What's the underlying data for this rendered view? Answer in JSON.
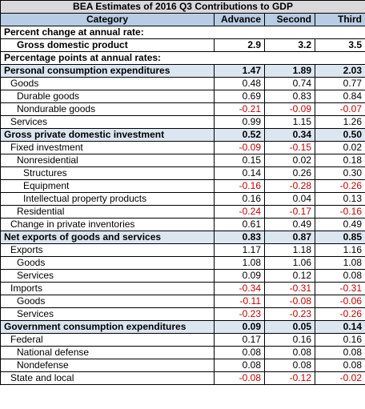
{
  "title": "BEA Estimates of 2016 Q3 Contributions to GDP",
  "table": {
    "header": [
      "Category",
      "Advance",
      "Second",
      "Third"
    ],
    "rows": [
      {
        "label": "Percent change at annual rate:",
        "level": 0,
        "emphasis": "bold"
      },
      {
        "label": "Gross domestic product",
        "level": 2,
        "emphasis": "bold",
        "values": [
          "2.9",
          "3.2",
          "3.5"
        ]
      },
      {
        "label": "Percentage points at annual rates:",
        "level": 0,
        "emphasis": "bold"
      },
      {
        "label": "Personal consumption expenditures",
        "level": 0,
        "emphasis": "section",
        "values": [
          "1.47",
          "1.89",
          "2.03"
        ]
      },
      {
        "label": "Goods",
        "level": 1,
        "values": [
          "0.48",
          "0.74",
          "0.77"
        ]
      },
      {
        "label": "Durable goods",
        "level": 2,
        "values": [
          "0.69",
          "0.83",
          "0.84"
        ]
      },
      {
        "label": "Nondurable goods",
        "level": 2,
        "values": [
          "-0.21",
          "-0.09",
          "-0.07"
        ]
      },
      {
        "label": "Services",
        "level": 1,
        "values": [
          "0.99",
          "1.15",
          "1.26"
        ]
      },
      {
        "label": "Gross private domestic investment",
        "level": 0,
        "emphasis": "section",
        "values": [
          "0.52",
          "0.34",
          "0.50"
        ]
      },
      {
        "label": "Fixed investment",
        "level": 1,
        "values": [
          "-0.09",
          "-0.15",
          "0.02"
        ]
      },
      {
        "label": "Nonresidential",
        "level": 2,
        "values": [
          "0.15",
          "0.02",
          "0.18"
        ]
      },
      {
        "label": "Structures",
        "level": 3,
        "values": [
          "0.14",
          "0.26",
          "0.30"
        ]
      },
      {
        "label": "Equipment",
        "level": 3,
        "values": [
          "-0.16",
          "-0.28",
          "-0.26"
        ]
      },
      {
        "label": "Intellectual property products",
        "level": 3,
        "values": [
          "0.16",
          "0.04",
          "0.13"
        ]
      },
      {
        "label": "Residential",
        "level": 2,
        "values": [
          "-0.24",
          "-0.17",
          "-0.16"
        ]
      },
      {
        "label": "Change in private inventories",
        "level": 1,
        "values": [
          "0.61",
          "0.49",
          "0.49"
        ]
      },
      {
        "label": "Net exports of goods and services",
        "level": 0,
        "emphasis": "section",
        "values": [
          "0.83",
          "0.87",
          "0.85"
        ]
      },
      {
        "label": "Exports",
        "level": 1,
        "values": [
          "1.17",
          "1.18",
          "1.16"
        ]
      },
      {
        "label": "Goods",
        "level": 2,
        "values": [
          "1.08",
          "1.06",
          "1.08"
        ]
      },
      {
        "label": "Services",
        "level": 2,
        "values": [
          "0.09",
          "0.12",
          "0.08"
        ]
      },
      {
        "label": "Imports",
        "level": 1,
        "values": [
          "-0.34",
          "-0.31",
          "-0.31"
        ]
      },
      {
        "label": "Goods",
        "level": 2,
        "values": [
          "-0.11",
          "-0.08",
          "-0.06"
        ]
      },
      {
        "label": "Services",
        "level": 2,
        "values": [
          "-0.23",
          "-0.23",
          "-0.26"
        ]
      },
      {
        "label": "Government consumption expenditures",
        "level": 0,
        "emphasis": "section",
        "values": [
          "0.09",
          "0.05",
          "0.14"
        ]
      },
      {
        "label": "Federal",
        "level": 1,
        "values": [
          "0.17",
          "0.16",
          "0.16"
        ]
      },
      {
        "label": "National defense",
        "level": 2,
        "values": [
          "0.08",
          "0.08",
          "0.08"
        ]
      },
      {
        "label": "Nondefense",
        "level": 2,
        "values": [
          "0.08",
          "0.08",
          "0.08"
        ]
      },
      {
        "label": "State and local",
        "level": 1,
        "values": [
          "-0.08",
          "-0.12",
          "-0.02"
        ]
      }
    ]
  }
}
